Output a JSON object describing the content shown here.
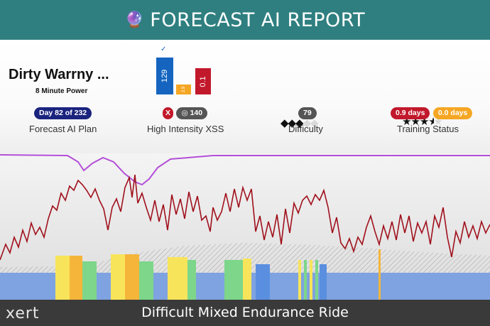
{
  "header": {
    "title": "FORECAST AI REPORT",
    "icon": "crystal-ball-icon"
  },
  "workout": {
    "name": "Dirty Warrny ...",
    "subtitle": "8 Minute Power",
    "day_badge": "Day 82 of 232",
    "plan_label": "Forecast AI Plan"
  },
  "xss": {
    "check": "✓",
    "low": "129",
    "high": "0.1",
    "peak": "2.9",
    "x_badge": "X",
    "target_badge": "140",
    "label": "High Intensity XSS",
    "colors": {
      "low": "#1565c0",
      "peak": "#f5a623",
      "high": "#c2182b"
    }
  },
  "difficulty": {
    "badge": "79",
    "label": "Difficulty",
    "filled": 3,
    "total": 5
  },
  "status": {
    "badge_red": "0.9 days",
    "badge_yellow": "0.0 days",
    "label": "Training Status",
    "stars": 3.5,
    "total": 5
  },
  "footer": {
    "logo": "xert",
    "title": "Difficult Mixed Endurance Ride"
  },
  "colors": {
    "header": "#2f7f80",
    "power_line": "#a0101c",
    "fitness_line": "#b44fd8",
    "footer": "#3a3a3a"
  }
}
